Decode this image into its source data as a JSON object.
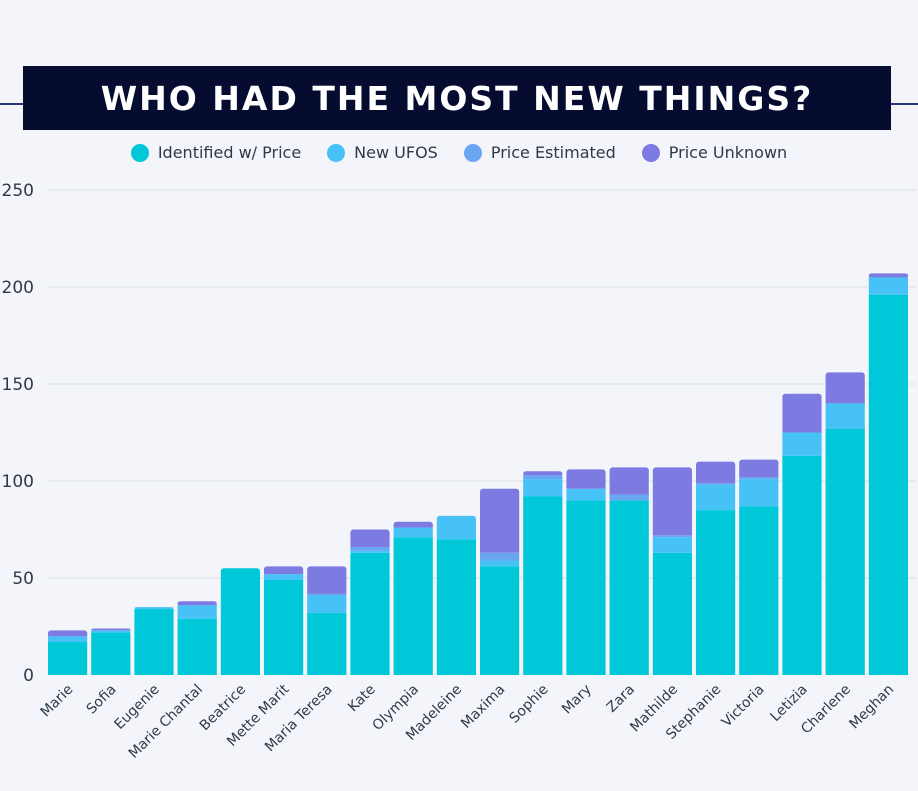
{
  "header": {
    "title": "WHO HAD THE MOST NEW THINGS?"
  },
  "colors": {
    "background": "#f3f5fb",
    "banner": "#050c30",
    "rule": "#2a3578"
  },
  "chart_data": {
    "type": "bar",
    "stacked": true,
    "title": "WHO HAD THE MOST NEW THINGS?",
    "xlabel": "",
    "ylabel": "",
    "ylim": [
      0,
      250
    ],
    "yticks": [
      0,
      50,
      100,
      150,
      200,
      250
    ],
    "grid": true,
    "legend_position": "top-center",
    "categories": [
      "Marie",
      "Sofia",
      "Eugenie",
      "Marie Chantal",
      "Beatrice",
      "Mette Marit",
      "Maria Teresa",
      "Kate",
      "Olympia",
      "Madeleine",
      "Maxima",
      "Sophie",
      "Mary",
      "Zara",
      "Mathilde",
      "Stephanie",
      "Victoria",
      "Letizia",
      "Charlene",
      "Meghan"
    ],
    "series": [
      {
        "name": "Identified w/ Price",
        "color": "#00c8d9",
        "values": [
          17,
          22,
          34,
          29,
          55,
          49,
          32,
          63,
          71,
          70,
          56,
          92,
          90,
          90,
          63,
          85,
          87,
          113,
          127,
          196
        ]
      },
      {
        "name": "New UFOS",
        "color": "#47c2f7",
        "values": [
          3,
          1,
          1,
          7,
          0,
          3,
          9,
          1,
          5,
          12,
          3,
          9,
          6,
          0,
          8,
          13,
          14,
          12,
          13,
          9
        ]
      },
      {
        "name": "Price Estimated",
        "color": "#68a6f2",
        "values": [
          0,
          0,
          0,
          0,
          0,
          0,
          1,
          2,
          0,
          0,
          4,
          2,
          0,
          3,
          1,
          1,
          1,
          0,
          0,
          0
        ]
      },
      {
        "name": "Price Unknown",
        "color": "#7d7be2",
        "values": [
          3,
          1,
          0,
          2,
          0,
          4,
          14,
          9,
          3,
          0,
          33,
          2,
          10,
          14,
          35,
          11,
          9,
          20,
          16,
          2
        ]
      }
    ]
  }
}
